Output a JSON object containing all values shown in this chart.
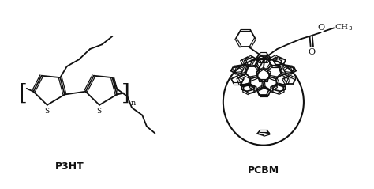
{
  "background_color": "#ffffff",
  "line_color": "#111111",
  "lw": 1.3,
  "lw_thin": 0.9,
  "figsize": [
    4.74,
    2.39
  ],
  "dpi": 100,
  "label_p3ht": "P3HT",
  "label_pcbm": "PCBM",
  "label_s1": "S",
  "label_s2": "S",
  "label_n": "n",
  "label_O_carbonyl": "O",
  "label_O_ester": "O",
  "label_CH3": "CH$_3$"
}
